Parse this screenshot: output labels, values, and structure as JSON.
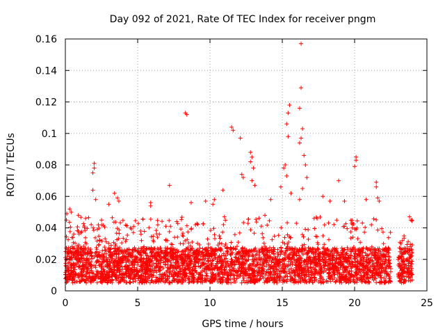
{
  "chart_data": {
    "type": "scatter",
    "title": "Day 092 of 2021, Rate Of TEC Index for receiver pngm",
    "xlabel": "GPS time / hours",
    "ylabel": "ROTI / TECUs",
    "xlim": [
      0,
      25
    ],
    "ylim": [
      0,
      0.16
    ],
    "x_ticks": [
      0,
      5,
      10,
      15,
      20,
      25
    ],
    "x_tick_labels": [
      "0",
      "5",
      "10",
      "15",
      "20",
      "25"
    ],
    "y_ticks": [
      0,
      0.02,
      0.04,
      0.06,
      0.08,
      0.1,
      0.12,
      0.14,
      0.16
    ],
    "y_tick_labels": [
      "0",
      "0.02",
      "0.04",
      "0.06",
      "0.08",
      "0.1",
      "0.12",
      "0.14",
      "0.16"
    ],
    "grid": true,
    "marker": "+",
    "color": "#ff0000",
    "coverage": {
      "data_gaps_hours": [
        [
          22.5,
          23.0
        ]
      ],
      "typical_range": [
        0.005,
        0.035
      ]
    },
    "series": [
      {
        "name": "ROTI",
        "points": [
          {
            "x": 16.3,
            "y": 0.157
          },
          {
            "x": 16.3,
            "y": 0.129
          },
          {
            "x": 16.2,
            "y": 0.116
          },
          {
            "x": 15.5,
            "y": 0.118
          },
          {
            "x": 15.4,
            "y": 0.113
          },
          {
            "x": 15.3,
            "y": 0.106
          },
          {
            "x": 15.4,
            "y": 0.098
          },
          {
            "x": 16.4,
            "y": 0.103
          },
          {
            "x": 16.3,
            "y": 0.097
          },
          {
            "x": 16.2,
            "y": 0.094
          },
          {
            "x": 16.5,
            "y": 0.086
          },
          {
            "x": 16.6,
            "y": 0.08
          },
          {
            "x": 16.7,
            "y": 0.072
          },
          {
            "x": 16.4,
            "y": 0.065
          },
          {
            "x": 16.2,
            "y": 0.058
          },
          {
            "x": 8.3,
            "y": 0.113
          },
          {
            "x": 8.4,
            "y": 0.112
          },
          {
            "x": 11.5,
            "y": 0.104
          },
          {
            "x": 11.6,
            "y": 0.102
          },
          {
            "x": 12.1,
            "y": 0.097
          },
          {
            "x": 12.8,
            "y": 0.088
          },
          {
            "x": 12.9,
            "y": 0.085
          },
          {
            "x": 12.8,
            "y": 0.082
          },
          {
            "x": 13.0,
            "y": 0.078
          },
          {
            "x": 12.2,
            "y": 0.074
          },
          {
            "x": 12.3,
            "y": 0.072
          },
          {
            "x": 12.9,
            "y": 0.07
          },
          {
            "x": 13.1,
            "y": 0.067
          },
          {
            "x": 15.2,
            "y": 0.08
          },
          {
            "x": 15.1,
            "y": 0.078
          },
          {
            "x": 15.3,
            "y": 0.073
          },
          {
            "x": 14.9,
            "y": 0.066
          },
          {
            "x": 15.6,
            "y": 0.062
          },
          {
            "x": 2.0,
            "y": 0.081
          },
          {
            "x": 2.0,
            "y": 0.078
          },
          {
            "x": 1.9,
            "y": 0.075
          },
          {
            "x": 1.9,
            "y": 0.064
          },
          {
            "x": 2.1,
            "y": 0.058
          },
          {
            "x": 20.1,
            "y": 0.085
          },
          {
            "x": 20.1,
            "y": 0.083
          },
          {
            "x": 20.0,
            "y": 0.079
          },
          {
            "x": 21.5,
            "y": 0.069
          },
          {
            "x": 21.5,
            "y": 0.066
          },
          {
            "x": 21.6,
            "y": 0.059
          },
          {
            "x": 21.7,
            "y": 0.057
          },
          {
            "x": 7.2,
            "y": 0.067
          },
          {
            "x": 18.9,
            "y": 0.07
          },
          {
            "x": 3.4,
            "y": 0.062
          },
          {
            "x": 3.6,
            "y": 0.059
          },
          {
            "x": 3.7,
            "y": 0.057
          },
          {
            "x": 3.0,
            "y": 0.055
          },
          {
            "x": 5.9,
            "y": 0.056
          },
          {
            "x": 5.9,
            "y": 0.054
          },
          {
            "x": 10.3,
            "y": 0.058
          },
          {
            "x": 10.2,
            "y": 0.055
          },
          {
            "x": 10.9,
            "y": 0.064
          },
          {
            "x": 9.7,
            "y": 0.057
          },
          {
            "x": 8.7,
            "y": 0.056
          },
          {
            "x": 14.2,
            "y": 0.058
          },
          {
            "x": 17.8,
            "y": 0.06
          },
          {
            "x": 18.3,
            "y": 0.057
          },
          {
            "x": 19.3,
            "y": 0.057
          },
          {
            "x": 20.8,
            "y": 0.058
          },
          {
            "x": 23.8,
            "y": 0.047
          },
          {
            "x": 23.9,
            "y": 0.045
          },
          {
            "x": 0.1,
            "y": 0.049
          },
          {
            "x": 0.3,
            "y": 0.052
          },
          {
            "x": 0.4,
            "y": 0.05
          },
          {
            "x": 0.9,
            "y": 0.048
          },
          {
            "x": 1.4,
            "y": 0.046
          },
          {
            "x": 2.5,
            "y": 0.045
          },
          {
            "x": 4.5,
            "y": 0.04
          },
          {
            "x": 5.2,
            "y": 0.038
          },
          {
            "x": 6.5,
            "y": 0.036
          },
          {
            "x": 7.7,
            "y": 0.044
          },
          {
            "x": 9.0,
            "y": 0.042
          },
          {
            "x": 11.0,
            "y": 0.047
          },
          {
            "x": 13.8,
            "y": 0.048
          },
          {
            "x": 17.2,
            "y": 0.046
          },
          {
            "x": 19.8,
            "y": 0.043
          },
          {
            "x": 22.0,
            "y": 0.03
          },
          {
            "x": 23.2,
            "y": 0.03
          }
        ]
      }
    ]
  }
}
